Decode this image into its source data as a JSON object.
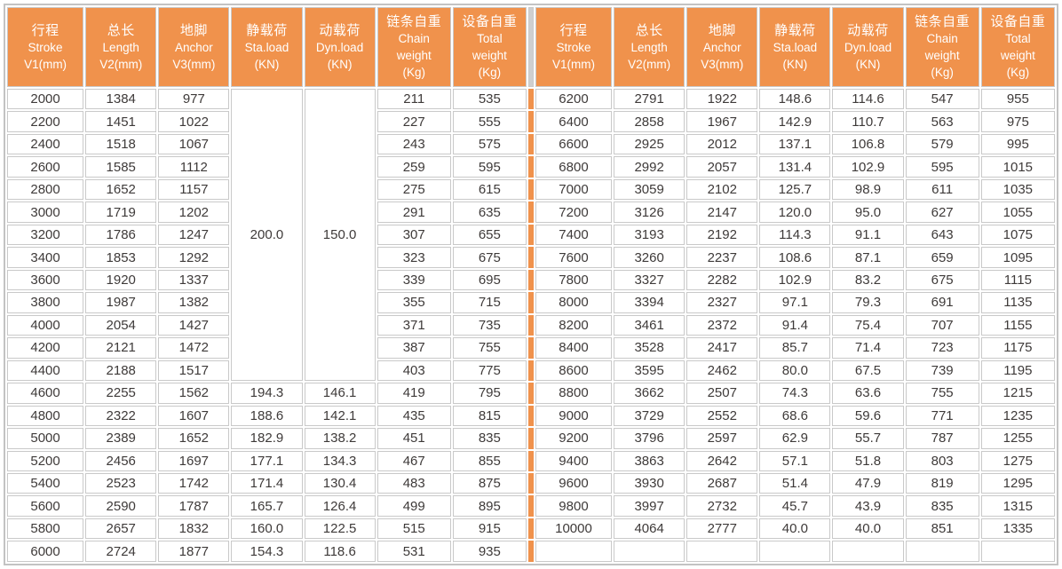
{
  "colors": {
    "header_bg": "#f0924c",
    "header_text": "#ffffff",
    "divider_orange": "#f0924c",
    "grid_line": "#c9c9c9",
    "outer_border": "#c3c3c3",
    "data_text": "#3e3a39",
    "cell_bg": "#ffffff"
  },
  "chart_data": {
    "type": "table",
    "layout": "two mirrored halves of 7 columns separated by a vertical orange divider; header row repeated for each half",
    "headers": [
      [
        "行程",
        "Stroke",
        "V1(mm)"
      ],
      [
        "总长",
        "Length",
        "V2(mm)"
      ],
      [
        "地脚",
        "Anchor",
        "V3(mm)"
      ],
      [
        "静载荷",
        "Sta.load",
        "(KN)"
      ],
      [
        "动载荷",
        "Dyn.load",
        "(KN)"
      ],
      [
        "链条自重",
        "Chain",
        "weight",
        "(Kg)"
      ],
      [
        "设备自重",
        "Total",
        "weight",
        "(Kg)"
      ]
    ],
    "merged_load": {
      "columns": [
        "Sta.load (KN)",
        "Dyn.load (KN)"
      ],
      "values": [
        "200.0",
        "150.0"
      ],
      "row_start": 0,
      "row_span": 13,
      "note": "strokes 2000-4400 share one merged static load cell (200.0) and one merged dynamic load cell (150.0)"
    },
    "left_rows": [
      [
        "2000",
        "1384",
        "977",
        null,
        null,
        "211",
        "535"
      ],
      [
        "2200",
        "1451",
        "1022",
        null,
        null,
        "227",
        "555"
      ],
      [
        "2400",
        "1518",
        "1067",
        null,
        null,
        "243",
        "575"
      ],
      [
        "2600",
        "1585",
        "1112",
        null,
        null,
        "259",
        "595"
      ],
      [
        "2800",
        "1652",
        "1157",
        null,
        null,
        "275",
        "615"
      ],
      [
        "3000",
        "1719",
        "1202",
        null,
        null,
        "291",
        "635"
      ],
      [
        "3200",
        "1786",
        "1247",
        null,
        null,
        "307",
        "655"
      ],
      [
        "3400",
        "1853",
        "1292",
        null,
        null,
        "323",
        "675"
      ],
      [
        "3600",
        "1920",
        "1337",
        null,
        null,
        "339",
        "695"
      ],
      [
        "3800",
        "1987",
        "1382",
        null,
        null,
        "355",
        "715"
      ],
      [
        "4000",
        "2054",
        "1427",
        null,
        null,
        "371",
        "735"
      ],
      [
        "4200",
        "2121",
        "1472",
        null,
        null,
        "387",
        "755"
      ],
      [
        "4400",
        "2188",
        "1517",
        null,
        null,
        "403",
        "775"
      ],
      [
        "4600",
        "2255",
        "1562",
        "194.3",
        "146.1",
        "419",
        "795"
      ],
      [
        "4800",
        "2322",
        "1607",
        "188.6",
        "142.1",
        "435",
        "815"
      ],
      [
        "5000",
        "2389",
        "1652",
        "182.9",
        "138.2",
        "451",
        "835"
      ],
      [
        "5200",
        "2456",
        "1697",
        "177.1",
        "134.3",
        "467",
        "855"
      ],
      [
        "5400",
        "2523",
        "1742",
        "171.4",
        "130.4",
        "483",
        "875"
      ],
      [
        "5600",
        "2590",
        "1787",
        "165.7",
        "126.4",
        "499",
        "895"
      ],
      [
        "5800",
        "2657",
        "1832",
        "160.0",
        "122.5",
        "515",
        "915"
      ],
      [
        "6000",
        "2724",
        "1877",
        "154.3",
        "118.6",
        "531",
        "935"
      ]
    ],
    "right_rows": [
      [
        "6200",
        "2791",
        "1922",
        "148.6",
        "114.6",
        "547",
        "955"
      ],
      [
        "6400",
        "2858",
        "1967",
        "142.9",
        "110.7",
        "563",
        "975"
      ],
      [
        "6600",
        "2925",
        "2012",
        "137.1",
        "106.8",
        "579",
        "995"
      ],
      [
        "6800",
        "2992",
        "2057",
        "131.4",
        "102.9",
        "595",
        "1015"
      ],
      [
        "7000",
        "3059",
        "2102",
        "125.7",
        "98.9",
        "611",
        "1035"
      ],
      [
        "7200",
        "3126",
        "2147",
        "120.0",
        "95.0",
        "627",
        "1055"
      ],
      [
        "7400",
        "3193",
        "2192",
        "114.3",
        "91.1",
        "643",
        "1075"
      ],
      [
        "7600",
        "3260",
        "2237",
        "108.6",
        "87.1",
        "659",
        "1095"
      ],
      [
        "7800",
        "3327",
        "2282",
        "102.9",
        "83.2",
        "675",
        "1115"
      ],
      [
        "8000",
        "3394",
        "2327",
        "97.1",
        "79.3",
        "691",
        "1135"
      ],
      [
        "8200",
        "3461",
        "2372",
        "91.4",
        "75.4",
        "707",
        "1155"
      ],
      [
        "8400",
        "3528",
        "2417",
        "85.7",
        "71.4",
        "723",
        "1175"
      ],
      [
        "8600",
        "3595",
        "2462",
        "80.0",
        "67.5",
        "739",
        "1195"
      ],
      [
        "8800",
        "3662",
        "2507",
        "74.3",
        "63.6",
        "755",
        "1215"
      ],
      [
        "9000",
        "3729",
        "2552",
        "68.6",
        "59.6",
        "771",
        "1235"
      ],
      [
        "9200",
        "3796",
        "2597",
        "62.9",
        "55.7",
        "787",
        "1255"
      ],
      [
        "9400",
        "3863",
        "2642",
        "57.1",
        "51.8",
        "803",
        "1275"
      ],
      [
        "9600",
        "3930",
        "2687",
        "51.4",
        "47.9",
        "819",
        "1295"
      ],
      [
        "9800",
        "3997",
        "2732",
        "45.7",
        "43.9",
        "835",
        "1315"
      ],
      [
        "10000",
        "4064",
        "2777",
        "40.0",
        "40.0",
        "851",
        "1335"
      ],
      [
        "",
        "",
        "",
        "",
        "",
        "",
        ""
      ]
    ]
  }
}
